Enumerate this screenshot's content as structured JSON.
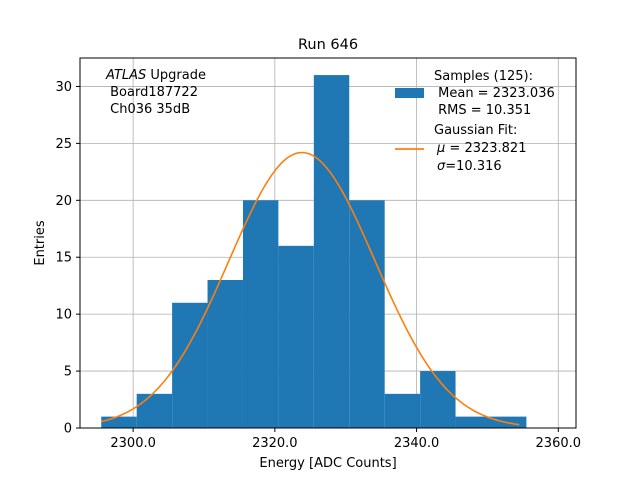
{
  "chart_data": {
    "type": "bar",
    "title": "Run 646",
    "xlabel": "Energy [ADC Counts]",
    "ylabel": "Entries",
    "xlim": [
      2292.5,
      2362.5
    ],
    "ylim": [
      0,
      32.5
    ],
    "xticks": [
      2300,
      2320,
      2340,
      2360
    ],
    "xtick_labels": [
      "2300.0",
      "2320.0",
      "2340.0",
      "2360.0"
    ],
    "yticks": [
      0,
      5,
      10,
      15,
      20,
      25,
      30
    ],
    "ytick_labels": [
      "0",
      "5",
      "10",
      "15",
      "20",
      "25",
      "30"
    ],
    "grid": true,
    "bins": [
      {
        "x0": 2295.5,
        "x1": 2300.5,
        "count": 1
      },
      {
        "x0": 2300.5,
        "x1": 2305.5,
        "count": 3
      },
      {
        "x0": 2305.5,
        "x1": 2310.5,
        "count": 11
      },
      {
        "x0": 2310.5,
        "x1": 2315.5,
        "count": 13
      },
      {
        "x0": 2315.5,
        "x1": 2320.5,
        "count": 20
      },
      {
        "x0": 2320.5,
        "x1": 2325.5,
        "count": 16
      },
      {
        "x0": 2325.5,
        "x1": 2330.5,
        "count": 31
      },
      {
        "x0": 2330.5,
        "x1": 2335.5,
        "count": 20
      },
      {
        "x0": 2335.5,
        "x1": 2340.5,
        "count": 3
      },
      {
        "x0": 2340.5,
        "x1": 2345.5,
        "count": 5
      },
      {
        "x0": 2345.5,
        "x1": 2350.5,
        "count": 1
      },
      {
        "x0": 2350.5,
        "x1": 2355.5,
        "count": 1
      }
    ],
    "fit": {
      "amplitude": 24.2,
      "mu": 2323.821,
      "sigma": 10.316,
      "x_start": 2295.5,
      "x_end": 2354.5
    },
    "colors": {
      "hist": "#1f77b4",
      "fit": "#ff7f0e",
      "grid": "#b0b0b0"
    },
    "annotation": {
      "line1_italic": "ATLAS",
      "line1_rest": " Upgrade",
      "line2": " Board187722",
      "line3": " Ch036 35dB"
    },
    "legend": {
      "placement": "top-right",
      "hist_lines": [
        "Samples (125):",
        " Mean = 2323.036",
        " RMS = 10.351"
      ],
      "fit_title": "Gaussian Fit:",
      "fit_mu_symbol": "μ",
      "fit_mu_rest": " = 2323.821",
      "fit_sigma_symbol": "σ",
      "fit_sigma_rest": "=10.316"
    }
  }
}
